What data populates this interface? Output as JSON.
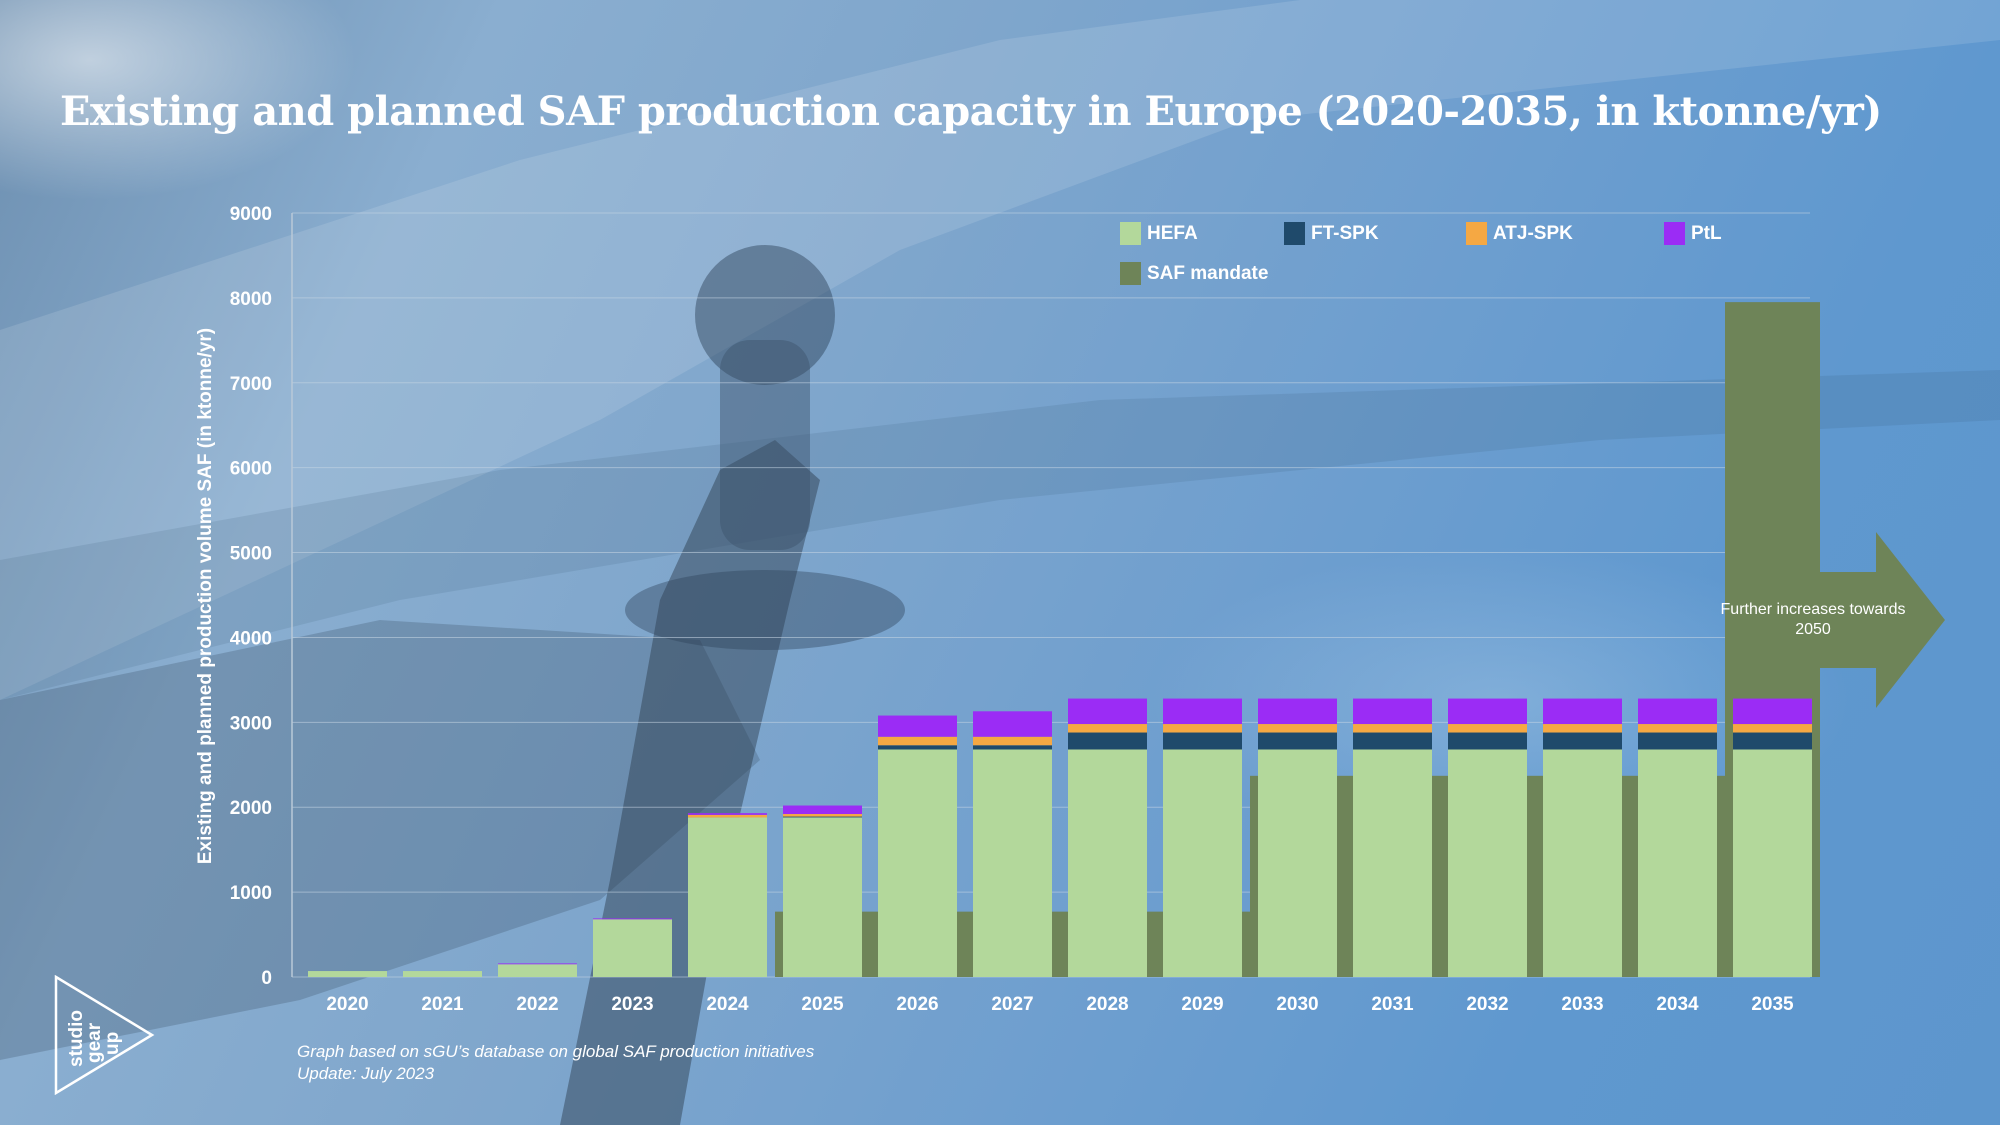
{
  "title": "Existing and planned SAF production capacity in Europe (2020-2035, in ktonne/yr)",
  "footnote": {
    "line1": "Graph based on sGU’s database on global SAF production initiatives",
    "line2": "Update: July 2023"
  },
  "arrow_label": "Further increases towards 2050",
  "logo": {
    "text": "studio gear up"
  },
  "colors": {
    "HEFA": "#b3d89b",
    "FT-SPK": "#1f4a6b",
    "ATJ-SPK": "#f5a843",
    "PtL": "#9b2cf5",
    "SAF mandate": "#6e8458"
  },
  "chart_data": {
    "type": "bar",
    "title": "Existing and planned SAF production capacity in Europe (2020-2035, in ktonne/yr)",
    "xlabel": "",
    "ylabel": "Existing and planned production volume SAF (in ktonne/yr)",
    "ylim": [
      0,
      9000
    ],
    "yticks": [
      "0",
      "1000",
      "2000",
      "3000",
      "4000",
      "5000",
      "6000",
      "7000",
      "8000",
      "9000"
    ],
    "grid": true,
    "legend_position": "top-right",
    "categories": [
      "2020",
      "2021",
      "2022",
      "2023",
      "2024",
      "2025",
      "2026",
      "2027",
      "2028",
      "2029",
      "2030",
      "2031",
      "2032",
      "2033",
      "2034",
      "2035"
    ],
    "series": [
      {
        "name": "HEFA",
        "stack": "capacity",
        "values": [
          70,
          70,
          150,
          680,
          1880,
          1880,
          2680,
          2680,
          2680,
          2680,
          2680,
          2680,
          2680,
          2680,
          2680,
          2680
        ]
      },
      {
        "name": "FT-SPK",
        "stack": "capacity",
        "values": [
          0,
          0,
          0,
          0,
          0,
          10,
          50,
          50,
          200,
          200,
          200,
          200,
          200,
          200,
          200,
          200
        ]
      },
      {
        "name": "ATJ-SPK",
        "stack": "capacity",
        "values": [
          0,
          0,
          0,
          0,
          30,
          30,
          100,
          100,
          100,
          100,
          100,
          100,
          100,
          100,
          100,
          100
        ]
      },
      {
        "name": "PtL",
        "stack": "capacity",
        "values": [
          0,
          0,
          10,
          10,
          20,
          100,
          250,
          300,
          300,
          300,
          300,
          300,
          300,
          300,
          300,
          300
        ]
      },
      {
        "name": "SAF mandate",
        "stack": "mandate",
        "values": [
          0,
          0,
          0,
          0,
          0,
          770,
          770,
          770,
          770,
          770,
          2370,
          2370,
          2370,
          2370,
          2370,
          7950
        ]
      }
    ],
    "annotations": [
      "Further increases towards 2050"
    ]
  }
}
